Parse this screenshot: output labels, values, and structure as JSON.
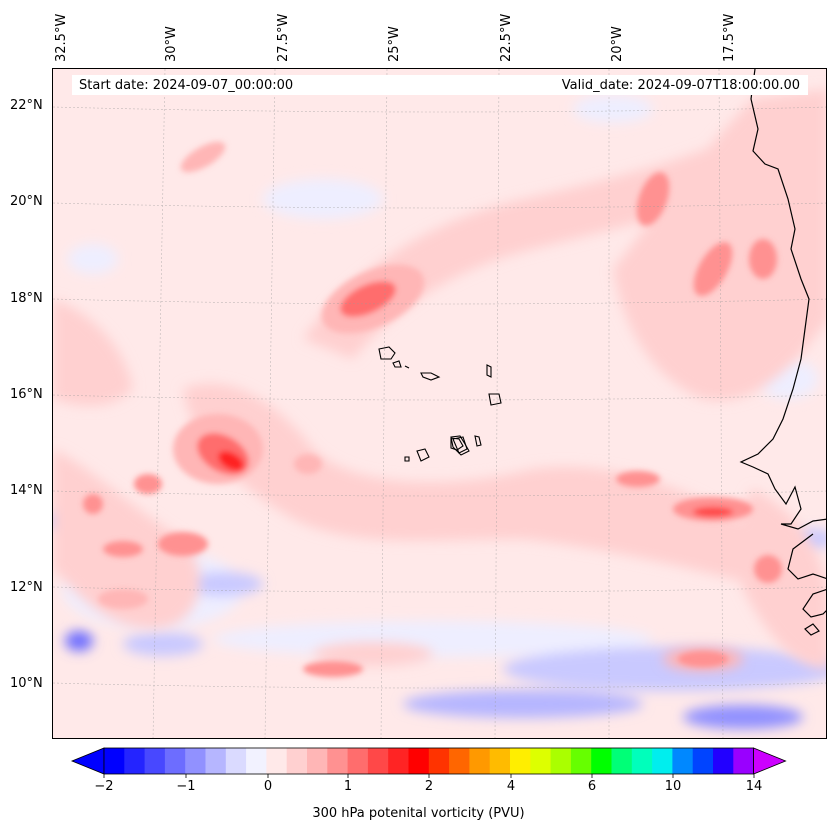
{
  "map": {
    "start_date": "Start date: 2024-09-07_00:00:00",
    "valid_date": "Valid_date: 2024-09-07T18:00:00.00",
    "lon_labels": [
      "32.5°W",
      "30°W",
      "27.5°W",
      "25°W",
      "22.5°W",
      "20°W",
      "17.5°W"
    ],
    "lat_labels": [
      "22°N",
      "20°N",
      "18°N",
      "16°N",
      "14°N",
      "12°N",
      "10°N"
    ],
    "colorbar": {
      "label": "300 hPa potenital vorticity (PVU)",
      "ticks": [
        "−2",
        "−1",
        "0",
        "1",
        "2",
        "4",
        "6",
        "10",
        "14"
      ],
      "colors": [
        "#0000ff",
        "#2424ff",
        "#4848ff",
        "#6d6dff",
        "#9191ff",
        "#b6b6ff",
        "#dadaff",
        "#f2f2ff",
        "#ffe9e9",
        "#ffd0d0",
        "#ffb6b6",
        "#ff9191",
        "#ff6d6d",
        "#ff4848",
        "#ff2424",
        "#ff0000",
        "#ff3300",
        "#ff6600",
        "#ff9900",
        "#ffbb00",
        "#ffee00",
        "#ddff00",
        "#aaff00",
        "#66ff00",
        "#00ff00",
        "#00ff77",
        "#00ffbb",
        "#00eeee",
        "#0088ff",
        "#0044ff",
        "#2200ff",
        "#9900ff"
      ],
      "under_color": "#0000ff",
      "over_color": "#cc00ff"
    }
  }
}
